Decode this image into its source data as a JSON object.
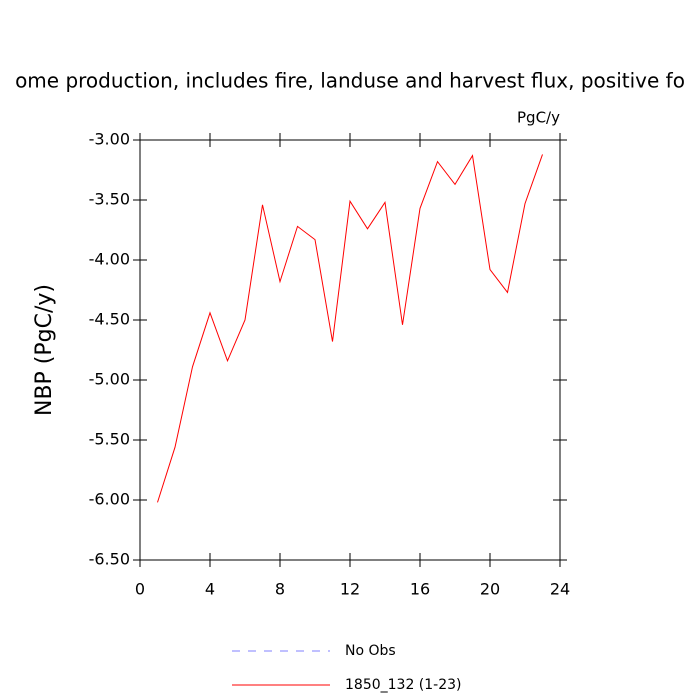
{
  "chart_data": {
    "type": "line",
    "title": "ome production, includes fire, landuse and harvest flux, positive fo",
    "units": "PgC/y",
    "y_label": "NBP  (PgC/y)",
    "x": [
      1,
      2,
      3,
      4,
      5,
      6,
      7,
      8,
      9,
      10,
      11,
      12,
      13,
      14,
      15,
      16,
      17,
      18,
      19,
      20,
      21,
      22,
      23
    ],
    "series": [
      {
        "name": "1850_132 (1-23)",
        "color": "#ff0000",
        "values": [
          -6.02,
          -5.56,
          -4.89,
          -4.44,
          -4.84,
          -4.5,
          -3.54,
          -4.18,
          -3.72,
          -3.83,
          -4.68,
          -3.51,
          -3.74,
          -3.52,
          -4.54,
          -3.57,
          -3.18,
          -3.37,
          -3.13,
          -4.08,
          -4.27,
          -3.53,
          -3.12
        ]
      }
    ],
    "reference": {
      "name": "No Obs",
      "color": "#8080ff",
      "dash": "8,8"
    },
    "xlim": [
      0,
      24
    ],
    "xticks": [
      0,
      4,
      8,
      12,
      16,
      20,
      24
    ],
    "ylim": [
      -6.5,
      -3.0
    ],
    "yticks": [
      {
        "value": -6.5,
        "label": "-6.50"
      },
      {
        "value": -6.0,
        "label": "-6.00"
      },
      {
        "value": -5.5,
        "label": "-5.50"
      },
      {
        "value": -5.0,
        "label": "-5.00"
      },
      {
        "value": -4.5,
        "label": "-4.50"
      },
      {
        "value": -4.0,
        "label": "-4.00"
      },
      {
        "value": -3.5,
        "label": "-3.50"
      },
      {
        "value": -3.0,
        "label": "-3.00"
      }
    ],
    "grid": false
  }
}
